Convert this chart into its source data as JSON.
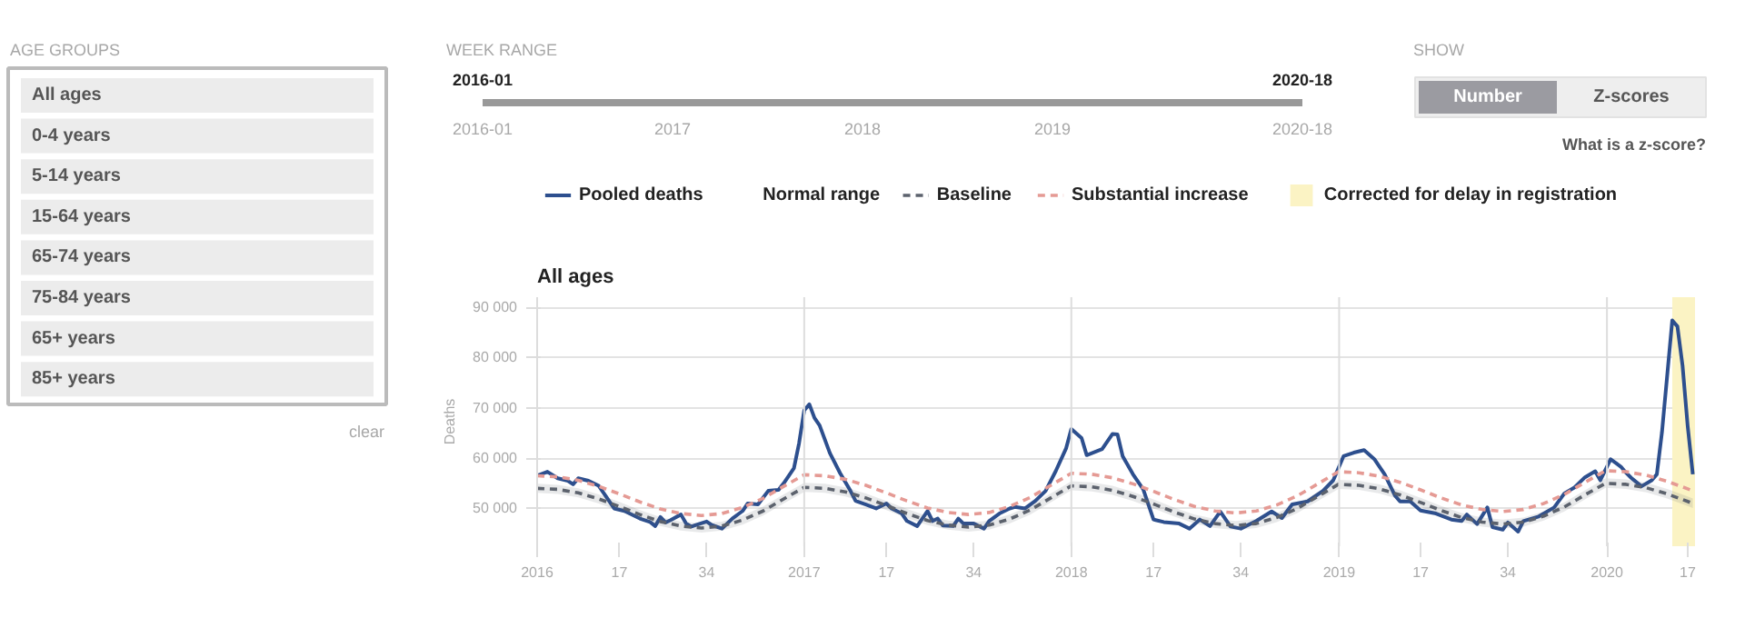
{
  "chart_data": [
    {
      "type": "other",
      "title": "AGE GROUPS",
      "categories": [
        "All ages",
        "0-4 years",
        "5-14 years",
        "15-64 years",
        "65-74 years",
        "75-84 years",
        "65+ years",
        "85+ years"
      ],
      "annotations": [
        "clear"
      ]
    },
    {
      "type": "other",
      "title": "WEEK RANGE",
      "annotations": [
        "2016-01",
        "2020-18"
      ],
      "categories": [
        "2016-01",
        "2017",
        "2018",
        "2019",
        "2020-18"
      ]
    },
    {
      "type": "other",
      "title": "SHOW",
      "categories": [
        "Number",
        "Z-scores"
      ],
      "annotations": [
        "What is a z-score?"
      ]
    },
    {
      "type": "line",
      "title": "All ages",
      "ylabel": "Deaths",
      "legend": "top",
      "grid": "y",
      "xlim": [
        "2016-01-04",
        "2020-04-30"
      ],
      "ylim": [
        42500,
        92000
      ],
      "xticks": [
        {
          "value": "2016-01-04",
          "label": "2016"
        },
        {
          "value": "2016-04-25",
          "label": "17"
        },
        {
          "value": "2016-08-22",
          "label": "34"
        },
        {
          "value": "2017-01-02",
          "label": "2017"
        },
        {
          "value": "2017-04-24",
          "label": "17"
        },
        {
          "value": "2017-08-21",
          "label": "34"
        },
        {
          "value": "2018-01-01",
          "label": "2018"
        },
        {
          "value": "2018-04-23",
          "label": "17"
        },
        {
          "value": "2018-08-20",
          "label": "34"
        },
        {
          "value": "2019-01-01",
          "label": "2019"
        },
        {
          "value": "2019-04-22",
          "label": "17"
        },
        {
          "value": "2019-08-19",
          "label": "34"
        },
        {
          "value": "2020-01-01",
          "label": "2020"
        },
        {
          "value": "2020-04-20",
          "label": "17"
        }
      ],
      "yticks": [
        {
          "value": 50000,
          "label": "50 000"
        },
        {
          "value": 60000,
          "label": "60 000"
        },
        {
          "value": 70000,
          "label": "70 000"
        },
        {
          "value": 80000,
          "label": "80 000"
        },
        {
          "value": 90000,
          "label": "90 000"
        }
      ],
      "x": [
        "2016-01-04",
        "2016-02-01",
        "2016-02-29",
        "2016-03-28",
        "2016-04-25",
        "2016-05-23",
        "2016-06-20",
        "2016-07-18",
        "2016-08-15",
        "2016-09-12",
        "2016-10-10",
        "2016-11-07",
        "2016-12-05",
        "2017-01-02",
        "2017-01-30",
        "2017-02-27",
        "2017-03-27",
        "2017-04-24",
        "2017-05-22",
        "2017-06-19",
        "2017-07-17",
        "2017-08-14",
        "2017-09-11",
        "2017-10-09",
        "2017-11-06",
        "2017-12-04",
        "2018-01-01",
        "2018-01-29",
        "2018-02-26",
        "2018-03-26",
        "2018-04-23",
        "2018-05-21",
        "2018-06-18",
        "2018-07-16",
        "2018-08-13",
        "2018-09-10",
        "2018-10-08",
        "2018-11-05",
        "2018-12-03",
        "2018-12-31",
        "2019-01-28",
        "2019-02-25",
        "2019-03-25",
        "2019-04-22",
        "2019-05-20",
        "2019-06-17",
        "2019-07-15",
        "2019-08-12",
        "2019-09-09",
        "2019-10-07",
        "2019-11-04",
        "2019-12-02",
        "2019-12-30",
        "2020-01-27",
        "2020-02-24",
        "2020-03-23",
        "2020-04-20",
        "2020-04-27"
      ],
      "series": [
        {
          "name": "Pooled deaths",
          "type": "line",
          "color": "#2d4f8e",
          "x": [
            "2016-01-04",
            "2016-01-18",
            "2016-02-01",
            "2016-02-15",
            "2016-02-22",
            "2016-02-29",
            "2016-03-14",
            "2016-03-28",
            "2016-04-04",
            "2016-04-18",
            "2016-05-02",
            "2016-05-23",
            "2016-06-06",
            "2016-06-13",
            "2016-06-20",
            "2016-06-27",
            "2016-07-04",
            "2016-07-18",
            "2016-07-25",
            "2016-08-01",
            "2016-08-22",
            "2016-08-29",
            "2016-09-12",
            "2016-09-26",
            "2016-10-10",
            "2016-10-17",
            "2016-10-31",
            "2016-11-14",
            "2016-11-28",
            "2016-12-05",
            "2016-12-19",
            "2016-12-26",
            "2017-01-02",
            "2017-01-09",
            "2017-01-16",
            "2017-01-23",
            "2017-02-06",
            "2017-02-20",
            "2017-03-06",
            "2017-03-13",
            "2017-03-27",
            "2017-04-10",
            "2017-04-24",
            "2017-05-01",
            "2017-05-15",
            "2017-05-22",
            "2017-06-05",
            "2017-06-19",
            "2017-06-26",
            "2017-07-03",
            "2017-07-10",
            "2017-07-24",
            "2017-07-31",
            "2017-08-07",
            "2017-08-21",
            "2017-09-04",
            "2017-09-11",
            "2017-09-25",
            "2017-10-09",
            "2017-10-16",
            "2017-10-30",
            "2017-11-13",
            "2017-11-27",
            "2017-12-11",
            "2017-12-25",
            "2018-01-01",
            "2018-01-15",
            "2018-01-22",
            "2018-02-05",
            "2018-02-12",
            "2018-02-26",
            "2018-03-05",
            "2018-03-12",
            "2018-03-26",
            "2018-04-09",
            "2018-04-23",
            "2018-05-07",
            "2018-05-28",
            "2018-06-11",
            "2018-06-25",
            "2018-07-09",
            "2018-07-23",
            "2018-08-06",
            "2018-08-20",
            "2018-09-10",
            "2018-10-01",
            "2018-10-15",
            "2018-10-29",
            "2018-11-19",
            "2018-12-10",
            "2018-12-24",
            "2019-01-07",
            "2019-01-21",
            "2019-02-04",
            "2019-02-18",
            "2019-03-04",
            "2019-03-18",
            "2019-03-25",
            "2019-04-08",
            "2019-04-22",
            "2019-05-13",
            "2019-06-03",
            "2019-06-17",
            "2019-06-24",
            "2019-07-08",
            "2019-07-22",
            "2019-07-29",
            "2019-08-12",
            "2019-08-19",
            "2019-09-02",
            "2019-09-09",
            "2019-09-30",
            "2019-10-21",
            "2019-11-04",
            "2019-11-18",
            "2019-12-02",
            "2019-12-16",
            "2019-12-23",
            "2020-01-06",
            "2020-01-20",
            "2020-01-27",
            "2020-02-03",
            "2020-02-17",
            "2020-03-02",
            "2020-03-09",
            "2020-03-16",
            "2020-03-30",
            "2020-04-06",
            "2020-04-13",
            "2020-04-20",
            "2020-04-27"
          ],
          "values": [
            56500,
            57300,
            56000,
            55500,
            54800,
            56000,
            55500,
            54500,
            53000,
            50000,
            49500,
            48000,
            47300,
            46500,
            48300,
            47200,
            47700,
            48800,
            47000,
            46400,
            47400,
            46700,
            46000,
            48000,
            49500,
            51000,
            50800,
            53500,
            53700,
            55000,
            58000,
            63000,
            69500,
            70700,
            68000,
            66500,
            61000,
            57000,
            53500,
            51500,
            50800,
            50000,
            51000,
            50000,
            49000,
            47500,
            46500,
            49500,
            47500,
            48000,
            46600,
            46500,
            48000,
            47000,
            47000,
            46000,
            47500,
            49000,
            50000,
            50300,
            50000,
            51500,
            53500,
            57500,
            62000,
            65800,
            64000,
            60600,
            61400,
            61800,
            64800,
            64700,
            60400,
            56800,
            53800,
            47800,
            47300,
            47000,
            46000,
            47800,
            46500,
            49400,
            46400,
            46000,
            47500,
            49400,
            48100,
            50800,
            51400,
            53500,
            55600,
            60400,
            61100,
            61600,
            59800,
            56800,
            52600,
            51400,
            51400,
            49600,
            49000,
            47800,
            47500,
            48800,
            46900,
            50200,
            46300,
            45800,
            47200,
            45400,
            47500,
            48400,
            50200,
            53000,
            54200,
            56200,
            57400,
            55600,
            59800,
            58300,
            57100,
            56100,
            54400,
            55600,
            56800,
            65200,
            87400,
            86200,
            78400,
            66400,
            56800
          ]
        },
        {
          "name": "Baseline",
          "type": "line",
          "color": "#5c626d",
          "line_style": "dashed",
          "lower": [
            53100,
            52900,
            52200,
            51000,
            49500,
            47900,
            46500,
            45600,
            45200,
            45600,
            46800,
            48600,
            51000,
            53300,
            53100,
            52400,
            51200,
            49700,
            48100,
            46700,
            45800,
            45400,
            45800,
            47000,
            48800,
            51200,
            53600,
            53400,
            52700,
            51500,
            50000,
            48400,
            47000,
            46100,
            45700,
            46100,
            47300,
            49100,
            51500,
            53900,
            53700,
            53000,
            51800,
            50300,
            48700,
            47300,
            46400,
            46000,
            46400,
            47600,
            49400,
            51800,
            54100,
            53900,
            53200,
            52000,
            50500,
            50100
          ],
          "upper": [
            54900,
            54700,
            54000,
            52800,
            51300,
            49700,
            48300,
            47400,
            47000,
            47400,
            48600,
            50400,
            52800,
            55100,
            54900,
            54200,
            53000,
            51500,
            49900,
            48500,
            47600,
            47200,
            47600,
            48800,
            50600,
            53000,
            55400,
            55200,
            54500,
            53300,
            51800,
            50200,
            48800,
            47900,
            47500,
            47900,
            49100,
            50900,
            53300,
            55700,
            55500,
            54800,
            53600,
            52100,
            50500,
            49100,
            48200,
            47800,
            48200,
            49400,
            51200,
            53600,
            56000,
            55800,
            55100,
            53900,
            52400,
            52000
          ],
          "values": [
            54000,
            53800,
            53100,
            51900,
            50400,
            48800,
            47400,
            46500,
            46100,
            46500,
            47700,
            49500,
            51900,
            54200,
            54000,
            53300,
            52100,
            50600,
            49000,
            47600,
            46700,
            46300,
            46700,
            47900,
            49700,
            52100,
            54500,
            54300,
            53600,
            52400,
            50900,
            49300,
            47900,
            47000,
            46600,
            47000,
            48200,
            50000,
            52400,
            54800,
            54600,
            53900,
            52700,
            51200,
            49600,
            48200,
            47300,
            46900,
            47300,
            48500,
            50300,
            52700,
            55000,
            54800,
            54100,
            52900,
            51400,
            51000
          ]
        },
        {
          "name": "Substantial increase",
          "type": "line",
          "color": "#e59a94",
          "line_style": "dashed",
          "values": [
            56500,
            56300,
            55600,
            54400,
            52900,
            51300,
            49900,
            49000,
            48600,
            49000,
            50200,
            52000,
            54400,
            56700,
            56500,
            55800,
            54600,
            53100,
            51500,
            50100,
            49200,
            48800,
            49200,
            50400,
            52200,
            54600,
            57000,
            56800,
            56100,
            54900,
            53400,
            51800,
            50400,
            49500,
            49100,
            49500,
            50700,
            52500,
            54900,
            57300,
            57100,
            56400,
            55200,
            53700,
            52100,
            50700,
            49800,
            49400,
            49800,
            51000,
            52800,
            55200,
            57500,
            57300,
            56600,
            55400,
            53900,
            53500
          ]
        }
      ],
      "annotations": [
        "Normal range"
      ],
      "bands": [
        {
          "axis": "x",
          "from": "2020-03-30",
          "to": "2020-04-30",
          "label": "Corrected for delay in registration",
          "color": "#fbf3c4"
        }
      ],
      "ref_lines": [
        {
          "axis": "x",
          "value": "2017-01-02",
          "color": "#dddddd"
        },
        {
          "axis": "x",
          "value": "2018-01-01",
          "color": "#dddddd"
        },
        {
          "axis": "x",
          "value": "2019-01-01",
          "color": "#dddddd"
        },
        {
          "axis": "x",
          "value": "2020-01-01",
          "color": "#dddddd"
        }
      ]
    }
  ]
}
